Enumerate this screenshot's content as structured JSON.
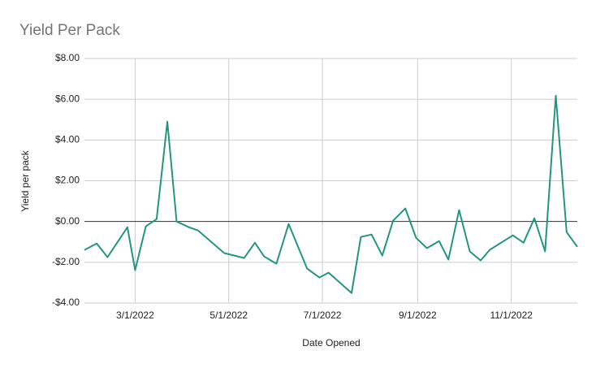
{
  "chart_data": {
    "type": "line",
    "title": "Yield Per Pack",
    "x_label": "Date Opened",
    "y_label": "Yield per pack",
    "x": [
      "1/27/2022",
      "2/4/2022",
      "2/11/2022",
      "2/24/2022",
      "3/1/2022",
      "3/8/2022",
      "3/15/2022",
      "3/22/2022",
      "3/28/2022",
      "4/5/2022",
      "4/11/2022",
      "4/28/2022",
      "5/11/2022",
      "5/18/2022",
      "5/24/2022",
      "6/1/2022",
      "6/9/2022",
      "6/21/2022",
      "6/29/2022",
      "7/5/2022",
      "7/20/2022",
      "7/26/2022",
      "8/2/2022",
      "8/9/2022",
      "8/16/2022",
      "8/24/2022",
      "8/31/2022",
      "9/7/2022",
      "9/15/2022",
      "9/21/2022",
      "9/28/2022",
      "10/5/2022",
      "10/12/2022",
      "10/18/2022",
      "11/2/2022",
      "11/9/2022",
      "11/16/2022",
      "11/23/2022",
      "11/30/2022",
      "12/7/2022",
      "12/14/2022"
    ],
    "series": [
      {
        "name": "Yield per pack",
        "color": "#23967f",
        "values": [
          -1.4,
          -1.08,
          -1.75,
          -0.28,
          -2.39,
          -0.24,
          0.12,
          4.9,
          0.0,
          -0.28,
          -0.44,
          -1.55,
          -1.79,
          -1.04,
          -1.71,
          -2.07,
          -0.12,
          -2.31,
          -2.75,
          -2.51,
          -3.51,
          -0.76,
          -0.64,
          -1.67,
          0.04,
          0.64,
          -0.8,
          -1.31,
          -0.96,
          -1.87,
          0.56,
          -1.47,
          -1.91,
          -1.39,
          -0.68,
          -1.04,
          0.16,
          -1.47,
          6.18,
          -0.52,
          -1.24
        ]
      }
    ],
    "xlim": [
      "1/27/2022",
      "12/14/2022"
    ],
    "xticks": [
      "3/1/2022",
      "5/1/2022",
      "7/1/2022",
      "9/1/2022",
      "11/1/2022"
    ],
    "ylim": [
      -4,
      8
    ],
    "yticks": [
      {
        "value": -4,
        "label": "-$4.00"
      },
      {
        "value": -2,
        "label": "-$2.00"
      },
      {
        "value": 0,
        "label": "$0.00"
      },
      {
        "value": 2,
        "label": "$2.00"
      },
      {
        "value": 4,
        "label": "$4.00"
      },
      {
        "value": 6,
        "label": "$6.00"
      },
      {
        "value": 8,
        "label": "$8.00"
      }
    ],
    "grid": true
  }
}
